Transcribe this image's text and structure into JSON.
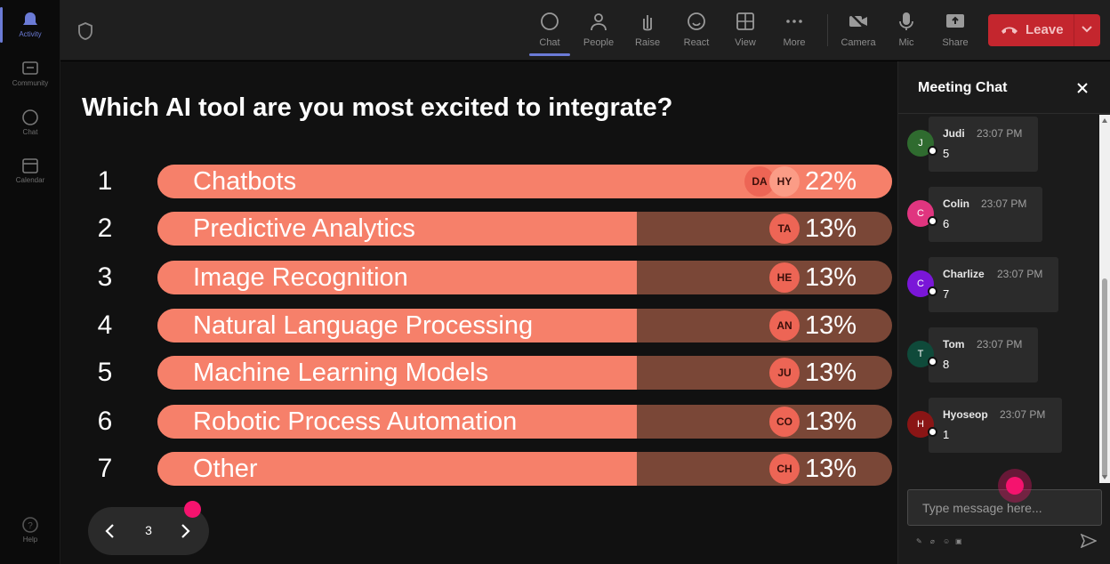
{
  "rail": {
    "items": [
      {
        "label": "Activity",
        "icon": "bell-icon",
        "active": true
      },
      {
        "label": "Community",
        "icon": "community-icon"
      },
      {
        "label": "Chat",
        "icon": "chat-icon"
      },
      {
        "label": "Calendar",
        "icon": "calendar-icon"
      }
    ],
    "help": {
      "label": "Help",
      "icon": "help-icon"
    }
  },
  "toolbar": {
    "items": [
      {
        "label": "Chat",
        "icon": "chat-bubble-icon",
        "active": true
      },
      {
        "label": "People",
        "icon": "people-icon"
      },
      {
        "label": "Raise",
        "icon": "raise-hand-icon"
      },
      {
        "label": "React",
        "icon": "smiley-icon"
      },
      {
        "label": "View",
        "icon": "grid-view-icon"
      },
      {
        "label": "More",
        "icon": "ellipsis-icon"
      },
      {
        "label": "Camera",
        "icon": "camera-off-icon"
      },
      {
        "label": "Mic",
        "icon": "mic-icon"
      },
      {
        "label": "Share",
        "icon": "share-icon"
      }
    ],
    "leave_label": "Leave"
  },
  "poll": {
    "question": "Which AI tool are you most excited to integrate?",
    "options": [
      {
        "rank": "1",
        "label": "Chatbots",
        "percent": "22%",
        "share": 0.22,
        "voters": [
          "DA",
          "HY"
        ]
      },
      {
        "rank": "2",
        "label": "Predictive Analytics",
        "percent": "13%",
        "share": 0.13,
        "voters": [
          "TA"
        ]
      },
      {
        "rank": "3",
        "label": "Image Recognition",
        "percent": "13%",
        "share": 0.13,
        "voters": [
          "HE"
        ]
      },
      {
        "rank": "4",
        "label": "Natural Language Processing",
        "percent": "13%",
        "share": 0.13,
        "voters": [
          "AN"
        ]
      },
      {
        "rank": "5",
        "label": "Machine Learning Models",
        "percent": "13%",
        "share": 0.13,
        "voters": [
          "JU"
        ]
      },
      {
        "rank": "6",
        "label": "Robotic Process Automation",
        "percent": "13%",
        "share": 0.13,
        "voters": [
          "CO"
        ]
      },
      {
        "rank": "7",
        "label": "Other",
        "percent": "13%",
        "share": 0.13,
        "voters": [
          "CH"
        ]
      }
    ],
    "colors": {
      "fill": "#f6806a",
      "track": "#7a4737",
      "avatar": "#ed6555"
    }
  },
  "pager": {
    "page": "3"
  },
  "chat": {
    "title": "Meeting Chat",
    "messages": [
      {
        "initial": "J",
        "name": "Judi",
        "time": "23:07 PM",
        "text": "5",
        "color": "#2f6b2f"
      },
      {
        "initial": "C",
        "name": "Colin",
        "time": "23:07 PM",
        "text": "6",
        "color": "#e0357f"
      },
      {
        "initial": "C",
        "name": "Charlize",
        "time": "23:07 PM",
        "text": "7",
        "color": "#7a16d8"
      },
      {
        "initial": "T",
        "name": "Tom",
        "time": "23:07 PM",
        "text": "8",
        "color": "#0f4a3a"
      },
      {
        "initial": "H",
        "name": "Hyoseop",
        "time": "23:07 PM",
        "text": "1",
        "color": "#8a1515"
      }
    ],
    "input_placeholder": "Type message here..."
  }
}
